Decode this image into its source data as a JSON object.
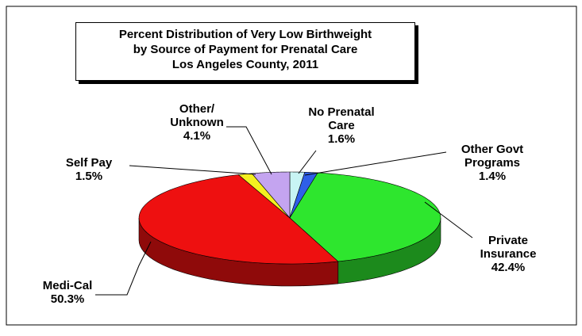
{
  "chart_data": {
    "type": "pie3d",
    "title": "Percent Distribution of Very Low Birthweight\nby Source of Payment for Prenatal Care\nLos Angeles County, 2011",
    "categories": [
      "No Prenatal\nCare",
      "Other Govt\nPrograms",
      "Private\nInsurance",
      "Medi-Cal",
      "Self Pay",
      "Other/\nUnknown"
    ],
    "values": [
      1.6,
      1.4,
      42.4,
      50.3,
      1.5,
      4.1
    ],
    "value_labels": [
      "1.6%",
      "1.4%",
      "42.4%",
      "50.3%",
      "1.5%",
      "4.1%"
    ],
    "colors": [
      "#c8f4f4",
      "#2f5fe8",
      "#2ee62e",
      "#ee1010",
      "#f4f020",
      "#c4a4f0"
    ]
  }
}
